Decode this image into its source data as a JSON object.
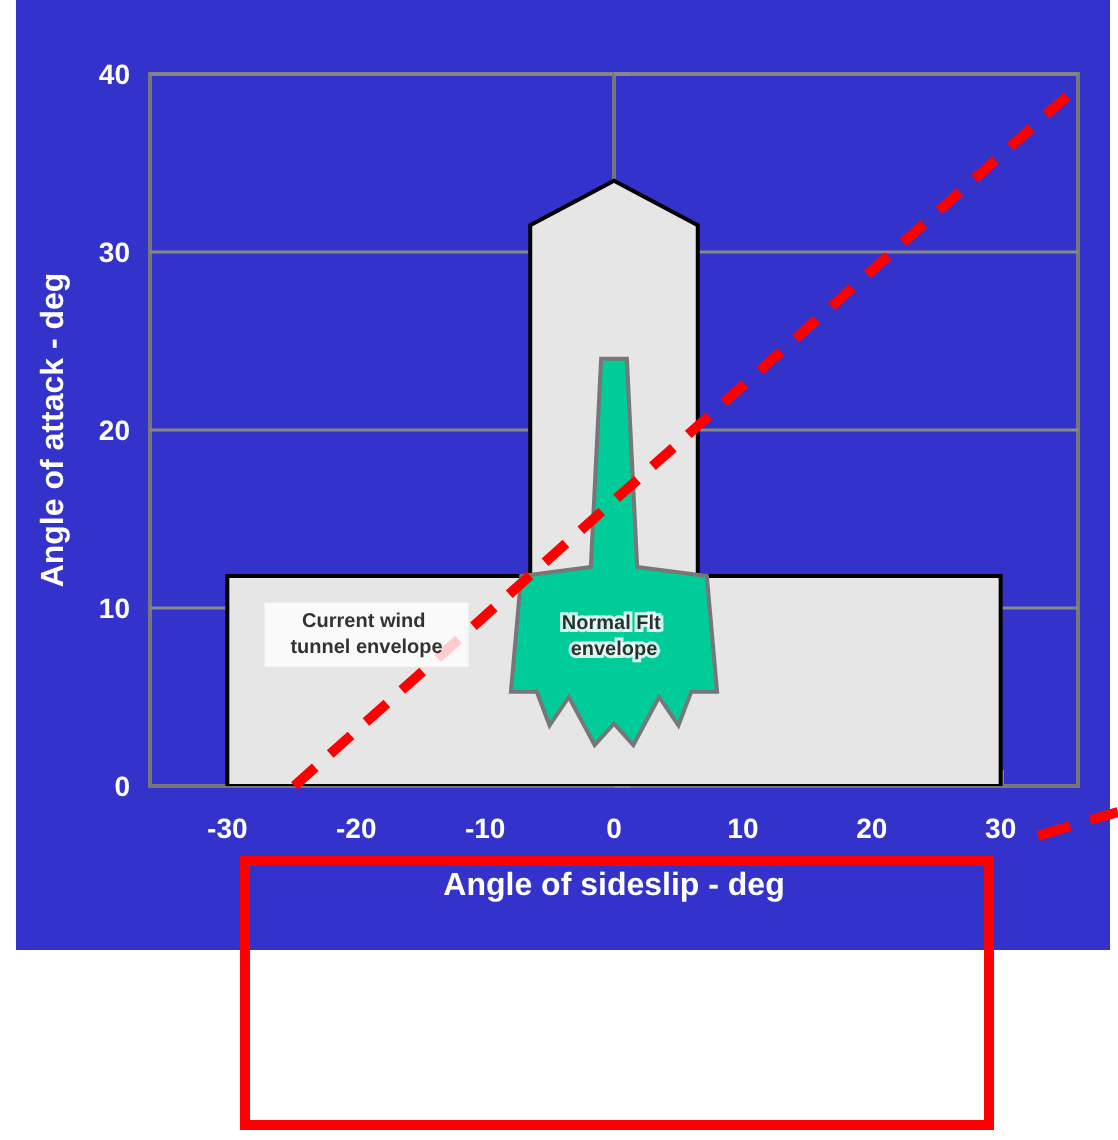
{
  "chart_data": {
    "type": "area",
    "xlabel": "Angle of sideslip - deg",
    "ylabel": "Angle of attack - deg",
    "xlim": [
      -36,
      36
    ],
    "ylim": [
      0,
      40
    ],
    "xticks": [
      -30,
      -20,
      -10,
      0,
      10,
      20,
      30
    ],
    "yticks": [
      0,
      10,
      20,
      30,
      40
    ],
    "grid": "y",
    "series": [
      {
        "name": "Current wind tunnel envelope",
        "color": "#e6e6e6",
        "x": [
          -30,
          -30,
          -6.5,
          -6.5,
          0,
          6.5,
          6.5,
          30,
          30
        ],
        "values": [
          0,
          11.8,
          11.8,
          31.5,
          34,
          31.5,
          11.8,
          11.8,
          0
        ]
      },
      {
        "name": "Normal Flt envelope",
        "color": "#00cc99",
        "x": [
          -1,
          1,
          1.8,
          7.2,
          8,
          6,
          5,
          3.5,
          1.5,
          0,
          -1.5,
          -3.5,
          -5,
          -6,
          -8,
          -7.2,
          -1.8
        ],
        "values": [
          24,
          24,
          12.3,
          11.8,
          5.3,
          5.3,
          3.4,
          5,
          2.3,
          3.5,
          2.3,
          5,
          3.4,
          5.3,
          5.3,
          11.8,
          12.3
        ]
      },
      {
        "type": "line",
        "color": "#ff0000",
        "line_style": "dashed",
        "x": [
          -24.8,
          36
        ],
        "values": [
          0,
          39.3
        ]
      }
    ]
  }
}
